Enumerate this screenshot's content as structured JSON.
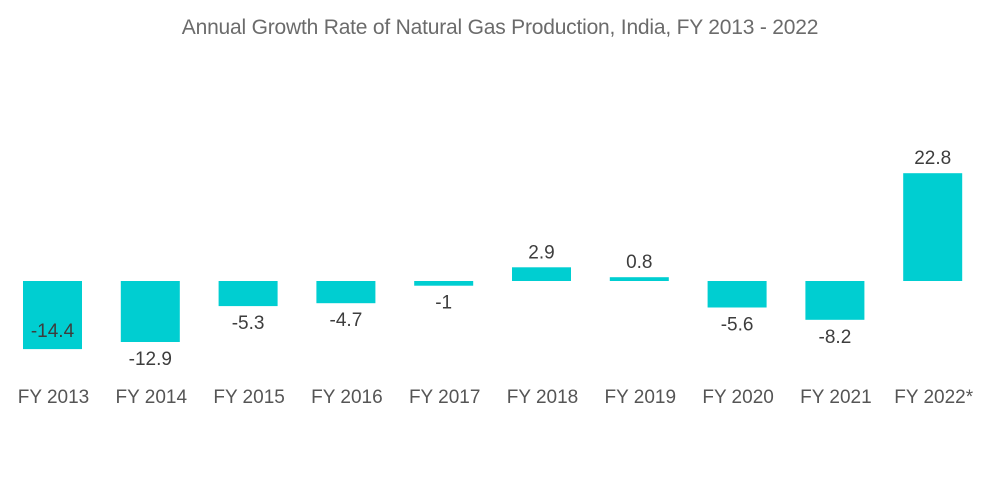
{
  "chart_data": {
    "type": "bar",
    "title": "Annual Growth Rate of Natural Gas Production, India, FY 2013 - 2022",
    "xlabel": "",
    "ylabel": "",
    "categories": [
      "FY 2013",
      "FY 2014",
      "FY 2015",
      "FY 2016",
      "FY 2017",
      "FY 2018",
      "FY 2019",
      "FY 2020",
      "FY 2021",
      "FY 2022*"
    ],
    "values": [
      -14.4,
      -12.9,
      -5.3,
      -4.7,
      -1,
      2.9,
      0.8,
      -5.6,
      -8.2,
      22.8
    ],
    "labels": [
      "-14.4",
      "-12.9",
      "-5.3",
      "-4.7",
      "-1",
      "2.9",
      "0.8",
      "-5.6",
      "-8.2",
      "22.8"
    ],
    "ylim": [
      -16,
      24
    ],
    "grid": false,
    "legend": "none",
    "bar_color": "#00CED1"
  }
}
